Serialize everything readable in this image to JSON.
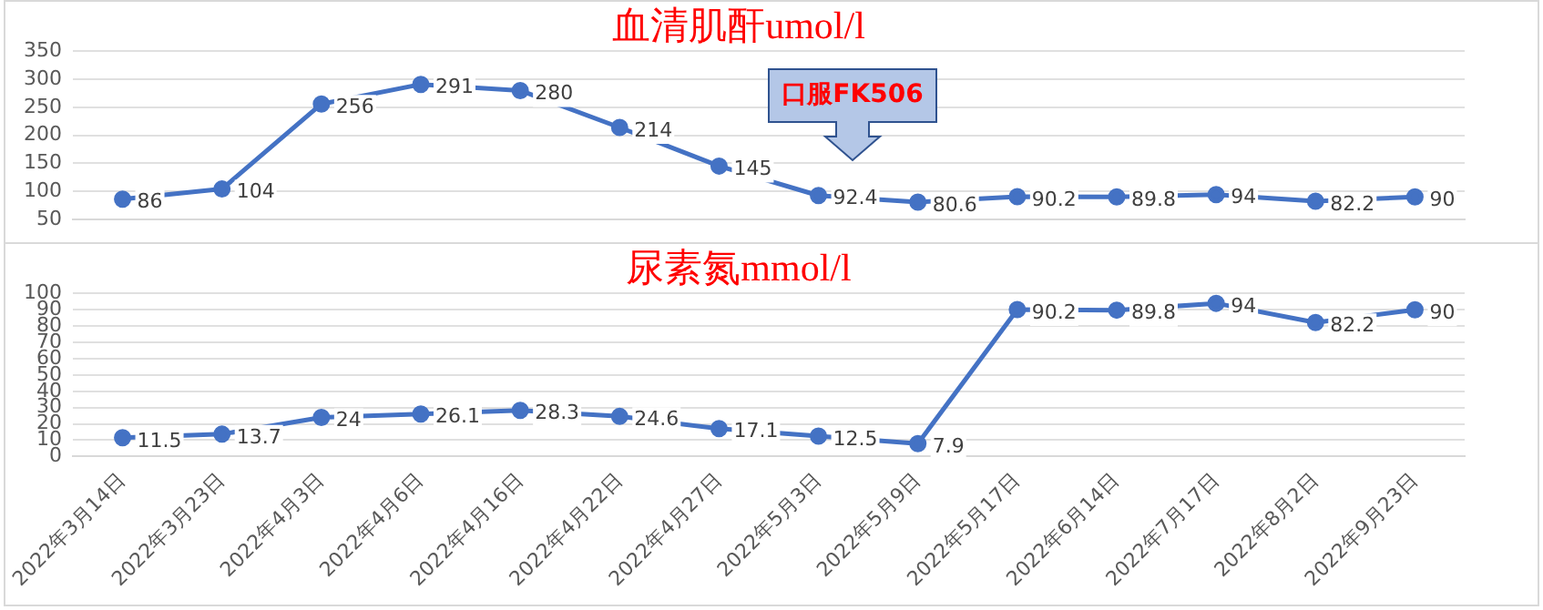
{
  "chart_data": [
    {
      "type": "line",
      "title": "血清肌酐umol/l",
      "categories": [
        null,
        null,
        null,
        null,
        null,
        null,
        null,
        null,
        null,
        null,
        null,
        null,
        null,
        null
      ],
      "series": [
        {
          "color": "#4472c4",
          "values": [
            86,
            104,
            256,
            291,
            280,
            214,
            145,
            92.4,
            80.6,
            90.2,
            89.8,
            94,
            82.2,
            90
          ]
        }
      ],
      "ylim": [
        50,
        350
      ],
      "yticks": [
        50,
        100,
        150,
        200,
        250,
        300,
        350
      ],
      "grid": "y",
      "legend": false,
      "marker": "circle",
      "line_style": "solid",
      "data_labels": true,
      "tick_labels": "y",
      "annotations": [
        "口服FK506"
      ]
    },
    {
      "type": "line",
      "title": "尿素氮mmol/l",
      "categories": [
        "2022年3月14日",
        "2022年3月23日",
        "2022年4月3日",
        "2022年4月6日",
        "2022年4月16日",
        "2022年4月22日",
        "2022年4月27日",
        "2022年5月3日",
        "2022年5月9日",
        "2022年5月17日",
        "2022年6月14日",
        "2022年7月17日",
        "2022年8月2日",
        "2022年9月23日"
      ],
      "series": [
        {
          "color": "#4472c4",
          "values": [
            11.5,
            13.7,
            24,
            26.1,
            28.3,
            24.6,
            17.1,
            12.5,
            7.9,
            90.2,
            89.8,
            94,
            82.2,
            90
          ]
        }
      ],
      "ylim": [
        0,
        100
      ],
      "yticks": [
        0,
        10,
        20,
        30,
        40,
        50,
        60,
        70,
        80,
        90,
        100
      ],
      "grid": "y",
      "legend": false,
      "marker": "circle",
      "line_style": "solid",
      "data_labels": true
    }
  ]
}
